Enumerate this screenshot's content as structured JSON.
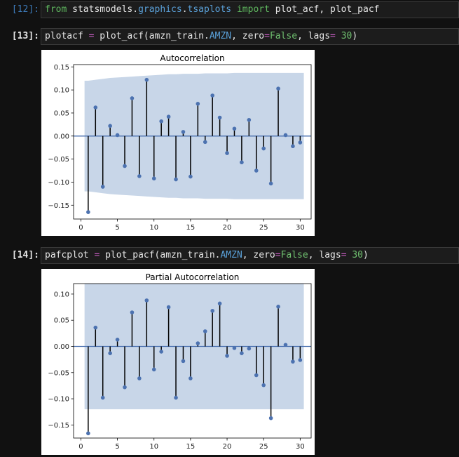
{
  "cells": [
    {
      "prompt": "[12]:",
      "code": [
        {
          "t": "from",
          "c": "kw"
        },
        {
          "t": " statsmodels",
          "c": ""
        },
        {
          "t": ".",
          "c": ""
        },
        {
          "t": "graphics",
          "c": "mod"
        },
        {
          "t": ".",
          "c": ""
        },
        {
          "t": "tsaplots",
          "c": "mod"
        },
        {
          "t": " ",
          "c": ""
        },
        {
          "t": "import",
          "c": "kw"
        },
        {
          "t": " plot_acf, plot_pacf",
          "c": ""
        }
      ]
    },
    {
      "prompt": "[13]:",
      "code": [
        {
          "t": "plotacf ",
          "c": ""
        },
        {
          "t": "=",
          "c": "op"
        },
        {
          "t": " plot_acf(amzn_train.",
          "c": ""
        },
        {
          "t": "AMZN",
          "c": "attr"
        },
        {
          "t": ", zero",
          "c": ""
        },
        {
          "t": "=",
          "c": "op"
        },
        {
          "t": "False",
          "c": "bool"
        },
        {
          "t": ", lags",
          "c": ""
        },
        {
          "t": "=",
          "c": "op"
        },
        {
          "t": " ",
          "c": ""
        },
        {
          "t": "30",
          "c": "num"
        },
        {
          "t": ")",
          "c": ""
        }
      ]
    },
    {
      "prompt": "[14]:",
      "code": [
        {
          "t": "pafcplot ",
          "c": ""
        },
        {
          "t": "=",
          "c": "op"
        },
        {
          "t": " plot_pacf(amzn_train.",
          "c": ""
        },
        {
          "t": "AMZN",
          "c": "attr"
        },
        {
          "t": ", zero",
          "c": ""
        },
        {
          "t": "=",
          "c": "op"
        },
        {
          "t": "False",
          "c": "bool"
        },
        {
          "t": ", lags",
          "c": ""
        },
        {
          "t": "=",
          "c": "op"
        },
        {
          "t": " ",
          "c": ""
        },
        {
          "t": "30",
          "c": "num"
        },
        {
          "t": ")",
          "c": ""
        }
      ]
    }
  ],
  "colors": {
    "stem": "#000000",
    "marker": "#4c72b0",
    "band": "#c8d6e8",
    "zero_line": "#4c72b0",
    "axis": "#000000"
  },
  "chart_data": [
    {
      "type": "stem",
      "title": "Autocorrelation",
      "xlabel": "",
      "ylabel": "",
      "xlim": [
        -1,
        31.5
      ],
      "ylim": [
        -0.18,
        0.155
      ],
      "x_ticks": [
        0,
        5,
        10,
        15,
        20,
        25,
        30
      ],
      "x_tick_labels": [
        "0",
        "5",
        "10",
        "15",
        "20",
        "25",
        "30"
      ],
      "y_ticks": [
        0.15,
        0.1,
        0.05,
        0.0,
        -0.05,
        -0.1,
        -0.15
      ],
      "y_tick_labels": [
        "0.15",
        "0.10",
        "0.05",
        "0.00",
        "−0.05",
        "−0.10",
        "−0.15"
      ],
      "grid": false,
      "lags": [
        1,
        2,
        3,
        4,
        5,
        6,
        7,
        8,
        9,
        10,
        11,
        12,
        13,
        14,
        15,
        16,
        17,
        18,
        19,
        20,
        21,
        22,
        23,
        24,
        25,
        26,
        27,
        28,
        29,
        30
      ],
      "values": [
        -0.165,
        0.062,
        -0.11,
        0.022,
        0.002,
        -0.065,
        0.082,
        -0.087,
        0.122,
        -0.092,
        0.032,
        0.042,
        -0.094,
        0.009,
        -0.088,
        0.07,
        -0.013,
        0.088,
        0.04,
        -0.037,
        0.016,
        -0.057,
        0.035,
        -0.075,
        -0.027,
        -0.103,
        0.103,
        0.002,
        -0.022,
        -0.014
      ],
      "confint_upper": [
        0.12,
        0.122,
        0.124,
        0.126,
        0.127,
        0.128,
        0.129,
        0.13,
        0.131,
        0.132,
        0.133,
        0.134,
        0.134,
        0.135,
        0.135,
        0.135,
        0.136,
        0.136,
        0.136,
        0.136,
        0.137,
        0.137,
        0.137,
        0.137,
        0.137,
        0.137,
        0.137,
        0.137,
        0.137,
        0.137
      ]
    },
    {
      "type": "stem",
      "title": "Partial Autocorrelation",
      "xlabel": "",
      "ylabel": "",
      "xlim": [
        -1,
        31.5
      ],
      "ylim": [
        -0.175,
        0.12
      ],
      "x_ticks": [
        0,
        5,
        10,
        15,
        20,
        25,
        30
      ],
      "x_tick_labels": [
        "0",
        "5",
        "10",
        "15",
        "20",
        "25",
        "30"
      ],
      "y_ticks": [
        0.1,
        0.05,
        0.0,
        -0.05,
        -0.1,
        -0.15
      ],
      "y_tick_labels": [
        "0.10",
        "0.05",
        "0.00",
        "−0.05",
        "−0.10",
        "−0.15"
      ],
      "grid": false,
      "lags": [
        1,
        2,
        3,
        4,
        5,
        6,
        7,
        8,
        9,
        10,
        11,
        12,
        13,
        14,
        15,
        16,
        17,
        18,
        19,
        20,
        21,
        22,
        23,
        24,
        25,
        26,
        27,
        28,
        29,
        30
      ],
      "values": [
        -0.166,
        0.036,
        -0.098,
        -0.013,
        0.013,
        -0.078,
        0.065,
        -0.061,
        0.088,
        -0.044,
        -0.01,
        0.075,
        -0.098,
        -0.028,
        -0.061,
        0.006,
        0.029,
        0.068,
        0.082,
        -0.018,
        -0.003,
        -0.013,
        -0.004,
        -0.055,
        -0.074,
        -0.137,
        0.076,
        0.003,
        -0.029,
        -0.026
      ],
      "confint_upper": [
        0.12,
        0.12,
        0.12,
        0.12,
        0.12,
        0.12,
        0.12,
        0.12,
        0.12,
        0.12,
        0.12,
        0.12,
        0.12,
        0.12,
        0.12,
        0.12,
        0.12,
        0.12,
        0.12,
        0.12,
        0.12,
        0.12,
        0.12,
        0.12,
        0.12,
        0.12,
        0.12,
        0.12,
        0.12,
        0.12
      ]
    }
  ]
}
